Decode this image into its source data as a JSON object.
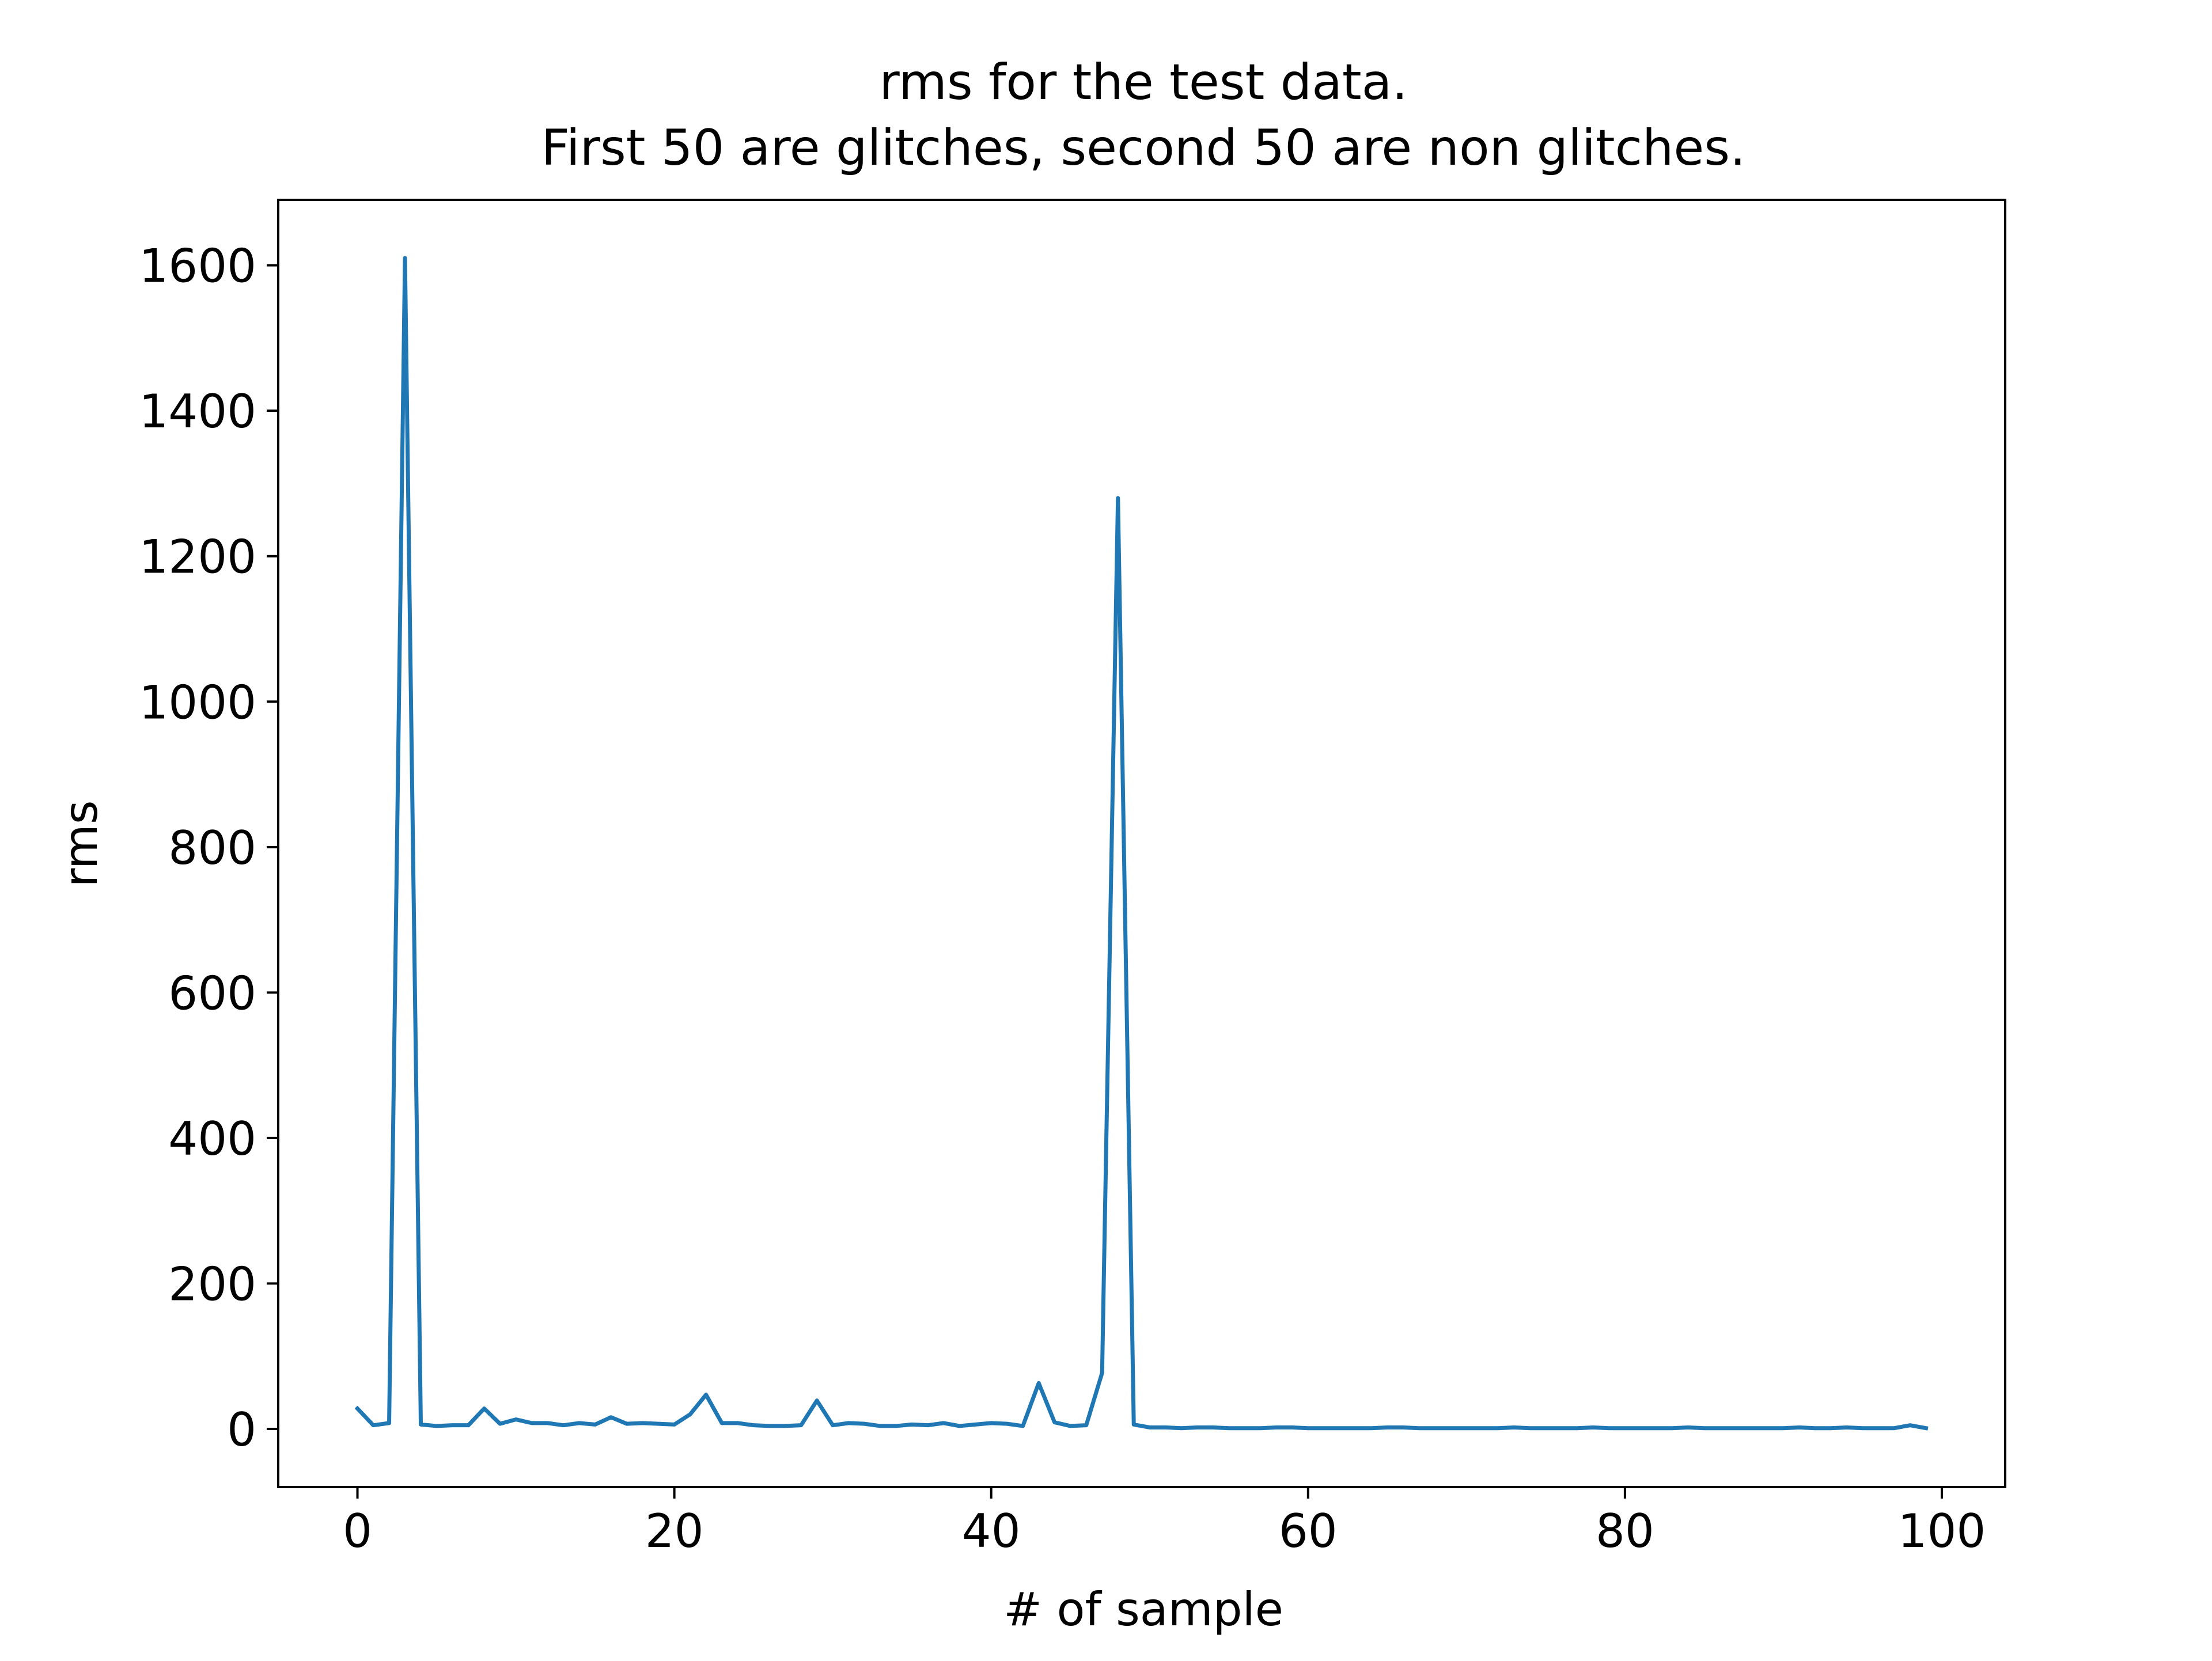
{
  "chart_data": {
    "type": "line",
    "title_line1": "rms for the test data.",
    "title_line2": "First 50 are glitches, second 50 are non glitches.",
    "xlabel": "# of sample",
    "ylabel": "rms",
    "xlim": [
      -5,
      104
    ],
    "ylim": [
      -80,
      1690
    ],
    "xticks": [
      0,
      20,
      40,
      60,
      80,
      100
    ],
    "yticks": [
      0,
      200,
      400,
      600,
      800,
      1000,
      1200,
      1400,
      1600
    ],
    "grid": false,
    "line_color": "#1f77b4",
    "series": [
      {
        "x": [
          0,
          1,
          2,
          3,
          4,
          5,
          6,
          7,
          8,
          9,
          10,
          11,
          12,
          13,
          14,
          15,
          16,
          17,
          18,
          19,
          20,
          21,
          22,
          23,
          24,
          25,
          26,
          27,
          28,
          29,
          30,
          31,
          32,
          33,
          34,
          35,
          36,
          37,
          38,
          39,
          40,
          41,
          42,
          43,
          44,
          45,
          46,
          47,
          48,
          49,
          50,
          51,
          52,
          53,
          54,
          55,
          56,
          57,
          58,
          59,
          60,
          61,
          62,
          63,
          64,
          65,
          66,
          67,
          68,
          69,
          70,
          71,
          72,
          73,
          74,
          75,
          76,
          77,
          78,
          79,
          80,
          81,
          82,
          83,
          84,
          85,
          86,
          87,
          88,
          89,
          90,
          91,
          92,
          93,
          94,
          95,
          96,
          97,
          98,
          99
        ],
        "values": [
          28,
          5,
          8,
          1610,
          6,
          4,
          5,
          5,
          28,
          7,
          13,
          8,
          8,
          5,
          8,
          6,
          16,
          7,
          8,
          7,
          6,
          20,
          47,
          8,
          8,
          5,
          4,
          4,
          5,
          39,
          5,
          8,
          7,
          4,
          4,
          6,
          5,
          8,
          4,
          6,
          8,
          7,
          4,
          63,
          9,
          4,
          5,
          77,
          1280,
          6,
          2,
          2,
          1,
          2,
          2,
          1,
          1,
          1,
          2,
          2,
          1,
          1,
          1,
          1,
          1,
          2,
          2,
          1,
          1,
          1,
          1,
          1,
          1,
          2,
          1,
          1,
          1,
          1,
          2,
          1,
          1,
          1,
          1,
          1,
          2,
          1,
          1,
          1,
          1,
          1,
          1,
          2,
          1,
          1,
          2,
          1,
          1,
          1,
          5,
          1
        ]
      }
    ]
  }
}
